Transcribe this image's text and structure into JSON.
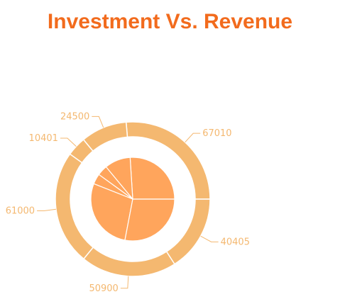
{
  "chart_data": {
    "type": "pie",
    "title": "Investment Vs. Revenue",
    "colors": {
      "title": "#f26b1d",
      "outer_ring": "#f4b870",
      "inner_pie": "#ffa55c",
      "separator": "#ffffff",
      "label": "#f4b870",
      "leader": "#f4b870"
    },
    "outer": {
      "values": [
        67010,
        24500,
        10401,
        61000,
        50900,
        40405
      ],
      "labels": [
        "67010",
        "24500",
        "10401",
        "61000",
        "50900",
        "40405"
      ]
    },
    "inner": {
      "values": [
        26,
        10,
        4,
        4,
        28,
        28
      ]
    }
  }
}
